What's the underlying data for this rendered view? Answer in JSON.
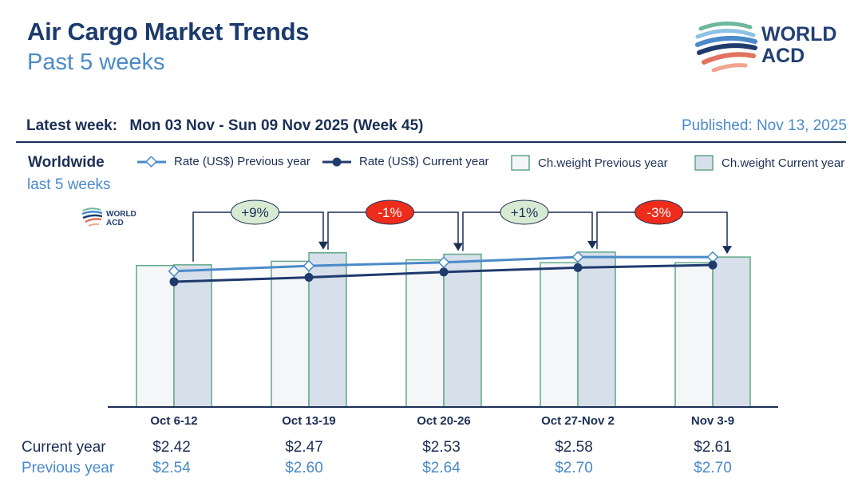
{
  "header": {
    "title": "Air Cargo Market Trends",
    "subtitle": "Past 5 weeks",
    "logo_line1": "WORLD",
    "logo_line2": "ACD",
    "latest_label": "Latest week:",
    "latest_value": "Mon 03 Nov - Sun 09 Nov 2025 (Week 45)",
    "published": "Published: Nov 13, 2025"
  },
  "region": {
    "name": "Worldwide",
    "period": "last 5 weeks"
  },
  "legend": [
    {
      "label": "Rate (US$) Previous year"
    },
    {
      "label": "Rate (US$) Current year"
    },
    {
      "label": "Ch.weight Previous year"
    },
    {
      "label": "Ch.weight Current year"
    }
  ],
  "colors": {
    "dark_blue": "#1f3b6e",
    "light_blue": "#4a8ac9",
    "bar_border": "#5fa987",
    "bar_prev_fill": "#f5f6f8",
    "bar_curr_fill": "#d6dfea",
    "increase_bubble": "#d9ead3",
    "decrease_bubble": "#ee2c1b"
  },
  "chart_data": {
    "type": "bar",
    "title": "Air Cargo Market Trends",
    "categories": [
      "Oct 6-12",
      "Oct 13-19",
      "Oct 20-26",
      "Oct 27-Nov 2",
      "Nov 3-9"
    ],
    "series": [
      {
        "name": "Ch.weight Previous year",
        "kind": "bar",
        "values": [
          100,
          103,
          104,
          102,
          102
        ]
      },
      {
        "name": "Ch.weight Current year",
        "kind": "bar",
        "values": [
          100.5,
          109,
          108,
          109.5,
          106
        ]
      },
      {
        "name": "Rate (US$) Previous year",
        "kind": "line",
        "values": [
          2.54,
          2.6,
          2.64,
          2.7,
          2.7
        ]
      },
      {
        "name": "Rate (US$) Current year",
        "kind": "line",
        "values": [
          2.42,
          2.47,
          2.53,
          2.58,
          2.61
        ]
      }
    ],
    "weekly_change": [
      "+9%",
      "-1%",
      "+1%",
      "-3%"
    ],
    "weight_ylim": [
      0,
      110
    ],
    "rate_ylim": [
      1.0,
      2.9
    ],
    "xlabel": "",
    "ylabel": ""
  },
  "table": {
    "current_label": "Current year",
    "previous_label": "Previous year",
    "current": [
      "$2.42",
      "$2.47",
      "$2.53",
      "$2.58",
      "$2.61"
    ],
    "previous": [
      "$2.54",
      "$2.60",
      "$2.64",
      "$2.70",
      "$2.70"
    ]
  }
}
